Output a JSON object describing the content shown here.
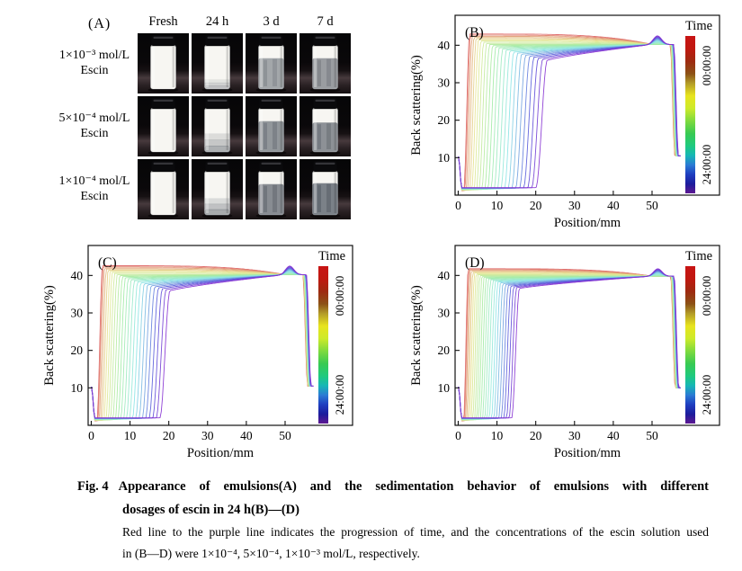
{
  "figure": {
    "panel_a": {
      "label": "(A)",
      "column_headers": [
        "Fresh",
        "24 h",
        "3 d",
        "7 d"
      ],
      "rows": [
        {
          "conc": "1×10⁻³ mol/L",
          "substance": "Escin",
          "cells": [
            {
              "time": "Fresh",
              "top_white": 1.0,
              "clarity": 0
            },
            {
              "time": "24 h",
              "top_white": 0.78,
              "clarity": 0.34,
              "soft": true
            },
            {
              "time": "3 d",
              "top_white": 0.3,
              "clarity": 0.52
            },
            {
              "time": "7 d",
              "top_white": 0.3,
              "clarity": 0.58
            }
          ]
        },
        {
          "conc": "5×10⁻⁴ mol/L",
          "substance": "Escin",
          "cells": [
            {
              "time": "Fresh",
              "top_white": 1.0,
              "clarity": 0
            },
            {
              "time": "24 h",
              "top_white": 0.58,
              "clarity": 0.46,
              "soft": true
            },
            {
              "time": "3 d",
              "top_white": 0.3,
              "clarity": 0.62
            },
            {
              "time": "7 d",
              "top_white": 0.33,
              "clarity": 0.66
            }
          ]
        },
        {
          "conc": "1×10⁻⁴ mol/L",
          "substance": "Escin",
          "cells": [
            {
              "time": "Fresh",
              "top_white": 1.0,
              "clarity": 0
            },
            {
              "time": "24 h",
              "top_white": 0.62,
              "clarity": 0.5,
              "soft": true
            },
            {
              "time": "3 d",
              "top_white": 0.3,
              "clarity": 0.7
            },
            {
              "time": "7 d",
              "top_white": 0.28,
              "clarity": 0.76
            }
          ]
        }
      ]
    },
    "caption": {
      "fig_label": "Fig. 4",
      "title_line1": "Appearance of emulsions(A) and the sedimentation behavior of emulsions with different",
      "title_line2": "dosages of escin in 24 h(B)—(D)",
      "note_line1": "Red line to the purple line indicates the progression of time, and the concentrations of the escin solution used",
      "note_line2": "in (B—D) were 1×10⁻⁴, 5×10⁻⁴, 1×10⁻³ mol/L, respectively."
    }
  },
  "chart_data": [
    {
      "panel_label": "(B)",
      "type": "line",
      "escin_concentration": "1×10⁻⁴ mol/L",
      "xlabel": "Position/mm",
      "ylabel": "Back scattering(%)",
      "xticks": [
        0,
        10,
        20,
        30,
        40,
        50
      ],
      "yticks": [
        10,
        20,
        30,
        40
      ],
      "xlim": [
        -0.8,
        67.4
      ],
      "ylim": [
        0,
        48
      ],
      "n_curves": 25,
      "time_colorbar": {
        "title": "Time",
        "start": "00:00:00",
        "end": "24:00:00"
      },
      "series_model": {
        "front_start_mm": 2.2,
        "front_end_mm": 21.5,
        "front_spacing_exp": 1.4,
        "rise_width_mm": [
          1.5,
          2.9
        ],
        "plateau_first_pct": 43.0,
        "plateau_last_pct": 35.5,
        "converge_x_mm": 50,
        "converge_y_pct": 40.2,
        "peak_bump_x_mm": 51.4,
        "peak_bump_pct": 2.3,
        "drop_x_mm": 55.3,
        "tail_y_pct": 10.5
      }
    },
    {
      "panel_label": "(C)",
      "type": "line",
      "escin_concentration": "5×10⁻⁴ mol/L",
      "xlabel": "Position/mm",
      "ylabel": "Back scattering(%)",
      "xticks": [
        0,
        10,
        20,
        30,
        40,
        50
      ],
      "yticks": [
        10,
        20,
        30,
        40
      ],
      "xlim": [
        -0.8,
        67.4
      ],
      "ylim": [
        0,
        48
      ],
      "n_curves": 25,
      "time_colorbar": {
        "title": "Time",
        "start": "00:00:00",
        "end": "24:00:00"
      },
      "series_model": {
        "front_start_mm": 2.2,
        "front_end_mm": 19.0,
        "front_spacing_exp": 1.4,
        "rise_width_mm": [
          1.4,
          2.6
        ],
        "plateau_first_pct": 42.6,
        "plateau_last_pct": 35.5,
        "converge_x_mm": 50,
        "converge_y_pct": 40.2,
        "peak_bump_x_mm": 51.2,
        "peak_bump_pct": 2.3,
        "drop_x_mm": 55.2,
        "tail_y_pct": 10.5
      }
    },
    {
      "panel_label": "(D)",
      "type": "line",
      "escin_concentration": "1×10⁻³ mol/L",
      "xlabel": "Position/mm",
      "ylabel": "Back scattering(%)",
      "xticks": [
        0,
        10,
        20,
        30,
        40,
        50
      ],
      "yticks": [
        10,
        20,
        30,
        40
      ],
      "xlim": [
        -0.8,
        67.4
      ],
      "ylim": [
        0,
        48
      ],
      "n_curves": 25,
      "time_colorbar": {
        "title": "Time",
        "start": "00:00:00",
        "end": "24:00:00"
      },
      "series_model": {
        "front_start_mm": 2.0,
        "front_end_mm": 14.8,
        "front_spacing_exp": 1.35,
        "rise_width_mm": [
          1.2,
          2.0
        ],
        "plateau_first_pct": 41.8,
        "plateau_last_pct": 36.3,
        "converge_x_mm": 50,
        "converge_y_pct": 39.8,
        "peak_bump_x_mm": 51.5,
        "peak_bump_pct": 2.0,
        "drop_x_mm": 55.4,
        "tail_y_pct": 10.0
      }
    }
  ],
  "colors": {
    "axis": "#111111",
    "background": "#ffffff",
    "colorbar_stops": [
      [
        "0%",
        "#c81414"
      ],
      [
        "8%",
        "#c01810"
      ],
      [
        "16%",
        "#9e2a10"
      ],
      [
        "24%",
        "#8c5216"
      ],
      [
        "30%",
        "#b29a28"
      ],
      [
        "38%",
        "#e8e41e"
      ],
      [
        "46%",
        "#cdea2a"
      ],
      [
        "54%",
        "#7eda3e"
      ],
      [
        "62%",
        "#38ca52"
      ],
      [
        "70%",
        "#1eca80"
      ],
      [
        "76%",
        "#16b6b6"
      ],
      [
        "82%",
        "#2a7ad4"
      ],
      [
        "88%",
        "#1e3ec0"
      ],
      [
        "94%",
        "#1c1c9c"
      ],
      [
        "100%",
        "#5e1892"
      ]
    ]
  }
}
